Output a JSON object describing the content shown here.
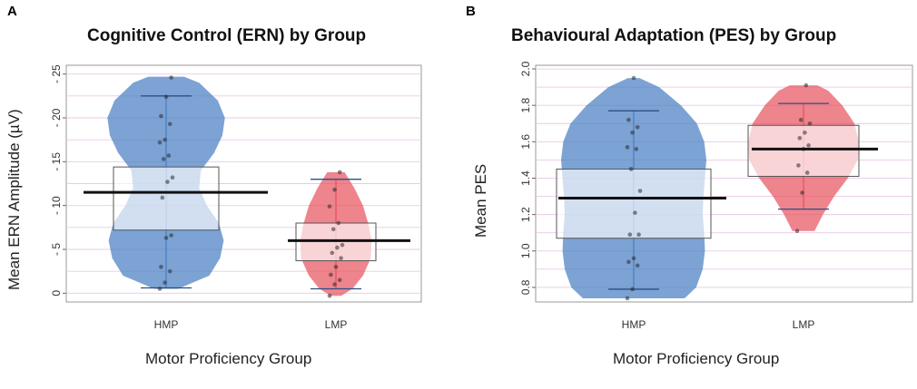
{
  "figure": {
    "panels": [
      "A",
      "B"
    ]
  },
  "chart_data": [
    {
      "type": "violin-box",
      "letter": "A",
      "title": "Cognitive Control (ERN) by Group",
      "xlabel": "Motor Proficiency Group",
      "ylabel": "Mean ERN Amplitude (µV)",
      "categories": [
        "HMP",
        "LMP"
      ],
      "ylim": [
        -1,
        26
      ],
      "yticks": [
        0,
        5,
        10,
        15,
        20,
        25
      ],
      "ytick_labels": [
        "0",
        "- 5",
        "- 10",
        "- 15",
        "- 20",
        "- 25"
      ],
      "grid": true,
      "series": [
        {
          "name": "HMP",
          "color": "#4a7fc4",
          "light_color": "#c5d7ee",
          "mean": 11.5,
          "q1": 7.2,
          "q3": 14.4,
          "whisker_low": 0.6,
          "whisker_high": 22.5,
          "violin": [
            [
              0.5,
              0.2
            ],
            [
              2,
              0.72
            ],
            [
              4,
              0.9
            ],
            [
              6,
              0.96
            ],
            [
              8,
              0.88
            ],
            [
              10,
              0.68
            ],
            [
              12,
              0.55
            ],
            [
              14,
              0.58
            ],
            [
              16,
              0.8
            ],
            [
              18,
              0.94
            ],
            [
              20,
              0.98
            ],
            [
              22,
              0.86
            ],
            [
              24,
              0.55
            ],
            [
              24.7,
              0.3
            ]
          ],
          "points": [
            0.5,
            1.2,
            2.5,
            3,
            6.3,
            6.6,
            10.9,
            12.7,
            13.2,
            15.3,
            15.7,
            17.2,
            17.5,
            19.3,
            20.2,
            22.4,
            24.6
          ]
        },
        {
          "name": "LMP",
          "color": "#e8545f",
          "light_color": "#f8dcdf",
          "mean": 6.0,
          "q1": 3.7,
          "q3": 8.0,
          "whisker_low": 0.5,
          "whisker_high": 13.0,
          "violin": [
            [
              -0.3,
              0.12
            ],
            [
              0.5,
              0.38
            ],
            [
              2,
              0.62
            ],
            [
              4,
              0.8
            ],
            [
              6,
              0.82
            ],
            [
              8,
              0.74
            ],
            [
              10,
              0.62
            ],
            [
              12,
              0.42
            ],
            [
              13.8,
              0.2
            ]
          ],
          "points": [
            -0.3,
            1,
            1.5,
            2.1,
            3,
            4,
            4.6,
            5.2,
            5.5,
            7.3,
            8,
            9.9,
            11.8,
            13.8
          ]
        }
      ]
    },
    {
      "type": "violin-box",
      "letter": "B",
      "title": "Behavioural Adaptation (PES) by Group",
      "xlabel": "Motor Proficiency Group",
      "ylabel": "Mean PES",
      "categories": [
        "HMP",
        "LMP"
      ],
      "ylim": [
        0.72,
        2.02
      ],
      "yticks": [
        0.8,
        1.0,
        1.2,
        1.4,
        1.6,
        1.8,
        2.0
      ],
      "ytick_labels": [
        "0.8",
        "1.0",
        "1.2",
        "1.4",
        "1.6",
        "1.8",
        "2.0"
      ],
      "grid": true,
      "series": [
        {
          "name": "HMP",
          "color": "#4a7fc4",
          "light_color": "#c5d7ee",
          "mean": 1.29,
          "q1": 1.07,
          "q3": 1.45,
          "whisker_low": 0.79,
          "whisker_high": 1.77,
          "violin": [
            [
              0.74,
              0.7
            ],
            [
              0.8,
              0.86
            ],
            [
              0.9,
              0.95
            ],
            [
              1.0,
              0.98
            ],
            [
              1.1,
              0.97
            ],
            [
              1.2,
              0.95
            ],
            [
              1.3,
              0.96
            ],
            [
              1.4,
              0.98
            ],
            [
              1.5,
              1.0
            ],
            [
              1.6,
              0.97
            ],
            [
              1.7,
              0.87
            ],
            [
              1.8,
              0.65
            ],
            [
              1.9,
              0.35
            ],
            [
              1.95,
              0.08
            ]
          ],
          "points": [
            0.74,
            0.79,
            0.92,
            0.94,
            0.96,
            1.09,
            1.09,
            1.21,
            1.33,
            1.45,
            1.56,
            1.57,
            1.65,
            1.68,
            1.72,
            1.95
          ]
        },
        {
          "name": "LMP",
          "color": "#e8545f",
          "light_color": "#f8dcdf",
          "mean": 1.56,
          "q1": 1.41,
          "q3": 1.69,
          "whisker_low": 1.23,
          "whisker_high": 1.81,
          "violin": [
            [
              1.11,
              0.2
            ],
            [
              1.2,
              0.35
            ],
            [
              1.3,
              0.55
            ],
            [
              1.4,
              0.8
            ],
            [
              1.5,
              0.98
            ],
            [
              1.6,
              1.0
            ],
            [
              1.7,
              0.92
            ],
            [
              1.8,
              0.7
            ],
            [
              1.88,
              0.45
            ],
            [
              1.91,
              0.25
            ]
          ],
          "points": [
            1.11,
            1.32,
            1.43,
            1.47,
            1.56,
            1.58,
            1.62,
            1.65,
            1.7,
            1.72,
            1.91
          ]
        }
      ]
    }
  ]
}
